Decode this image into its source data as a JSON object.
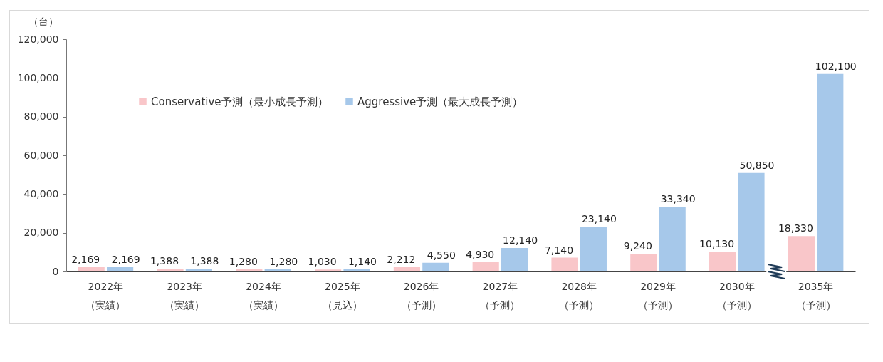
{
  "chart_data": {
    "type": "bar",
    "ylabel": "（台）",
    "categories": [
      "2022年（実績）",
      "2023年（実績）",
      "2024年（実績）",
      "2025年（見込）",
      "2026年（予測）",
      "2027年（予測）",
      "2028年（予測）",
      "2029年（予測）",
      "2030年（予測）",
      "2035年（予測）"
    ],
    "series": [
      {
        "name": "Conservative予測（最小成長予測）",
        "color": "#f9c6c9",
        "values": [
          2169,
          1388,
          1280,
          1030,
          2212,
          4930,
          7140,
          9240,
          10130,
          18330
        ],
        "value_labels": [
          "2,169",
          "1,388",
          "1,280",
          "1,030",
          "2,212",
          "4,930",
          "7,140",
          "9,240",
          "10,130",
          "18,330"
        ]
      },
      {
        "name": "Aggressive予測（最大成長予測）",
        "color": "#a6c8ea",
        "values": [
          2169,
          1388,
          1280,
          1140,
          4550,
          12140,
          23140,
          33340,
          50850,
          102100
        ],
        "value_labels": [
          "2,169",
          "1,388",
          "1,280",
          "1,140",
          "4,550",
          "12,140",
          "23,140",
          "33,340",
          "50,850",
          "102,100"
        ]
      }
    ],
    "ylim": [
      0,
      120000
    ],
    "yticks": [
      {
        "value": 0,
        "label": "0"
      },
      {
        "value": 20000,
        "label": "20,000"
      },
      {
        "value": 40000,
        "label": "40,000"
      },
      {
        "value": 60000,
        "label": "60,000"
      },
      {
        "value": 80000,
        "label": "80,000"
      },
      {
        "value": 100000,
        "label": "100,000"
      },
      {
        "value": 120000,
        "label": "120,000"
      }
    ],
    "grid": false,
    "legend": "top left"
  }
}
